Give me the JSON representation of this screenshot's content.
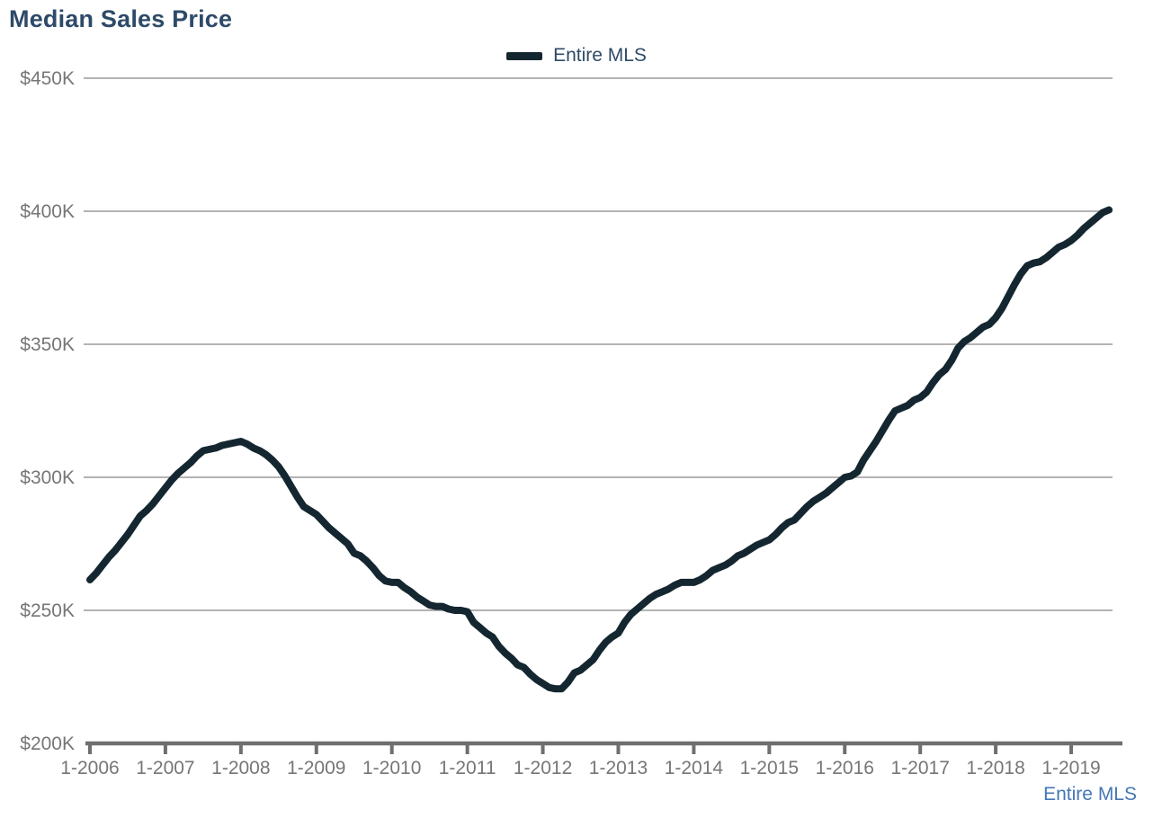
{
  "title": {
    "text": "Median Sales Price",
    "color": "#2e4a68"
  },
  "legend": {
    "label": "Entire MLS",
    "swatch_color": "#142730",
    "text_color": "#2e4a68",
    "position": "top-center"
  },
  "footer": {
    "link_label": "Entire MLS",
    "link_color": "#4577b5"
  },
  "chart_data": {
    "type": "line",
    "title": "Median Sales Price",
    "series": [
      {
        "name": "Entire MLS",
        "color": "#142730",
        "values_unit": "USD thousands",
        "values": [
          261.5,
          264,
          267,
          270,
          272.5,
          275.5,
          278.5,
          282,
          285.5,
          287.5,
          290,
          293,
          296,
          299,
          301.5,
          303.5,
          305.5,
          308,
          310,
          310.5,
          311,
          312,
          312.5,
          313,
          313.5,
          312.5,
          311,
          310,
          308.5,
          306.5,
          304,
          300.5,
          296.5,
          292.5,
          289,
          287.5,
          286,
          283.5,
          281,
          279,
          277,
          275,
          271.5,
          270.5,
          268.5,
          266,
          263,
          261,
          260.5,
          260.5,
          258.5,
          257,
          255,
          253.5,
          252,
          251.5,
          251.5,
          250.5,
          250,
          250,
          249.5,
          245.5,
          243.5,
          241.5,
          240,
          236.5,
          234,
          232,
          229.5,
          228.5,
          226,
          224,
          222.5,
          221,
          220.5,
          220.5,
          223,
          226.5,
          227.5,
          229.5,
          231.5,
          235,
          238,
          240,
          241.5,
          245.5,
          248.5,
          250.5,
          252.5,
          254.5,
          256,
          257,
          258,
          259.5,
          260.5,
          260.5,
          260.5,
          261.5,
          263,
          265,
          266,
          267,
          268.5,
          270.5,
          271.5,
          273,
          274.5,
          275.5,
          276.5,
          278.5,
          281,
          283,
          284,
          286.5,
          289,
          291,
          292.5,
          294,
          296,
          298,
          300,
          300.5,
          302,
          306.5,
          310,
          313.5,
          317.5,
          321.5,
          325,
          326,
          327,
          329,
          330,
          332,
          335.5,
          338.5,
          340.5,
          344,
          348.5,
          351,
          352.5,
          354.5,
          356.5,
          357.5,
          360,
          363.5,
          368,
          372.5,
          376.5,
          379.5,
          380.5,
          381,
          382.5,
          384.5,
          386.5,
          387.5,
          389,
          391,
          393.5,
          395.5,
          397.5,
          399.5,
          400.5
        ]
      }
    ],
    "x_interval": "monthly",
    "x_start": "1-2006",
    "x_end": "7-2019",
    "x_tick_labels": [
      "1-2006",
      "1-2007",
      "1-2008",
      "1-2009",
      "1-2010",
      "1-2011",
      "1-2012",
      "1-2013",
      "1-2014",
      "1-2015",
      "1-2016",
      "1-2017",
      "1-2018",
      "1-2019"
    ],
    "y_ticks": [
      200,
      250,
      300,
      350,
      400,
      450
    ],
    "y_tick_labels": [
      "$200K",
      "$250K",
      "$300K",
      "$350K",
      "$400K",
      "$450K"
    ],
    "ylim": [
      200,
      450
    ],
    "grid": "horizontal",
    "legend_position": "top-center",
    "colors": {
      "gridline": "#b3b3b3",
      "axis": "#6f6f6f",
      "tick_label": "#767676",
      "line": "#142730"
    }
  }
}
